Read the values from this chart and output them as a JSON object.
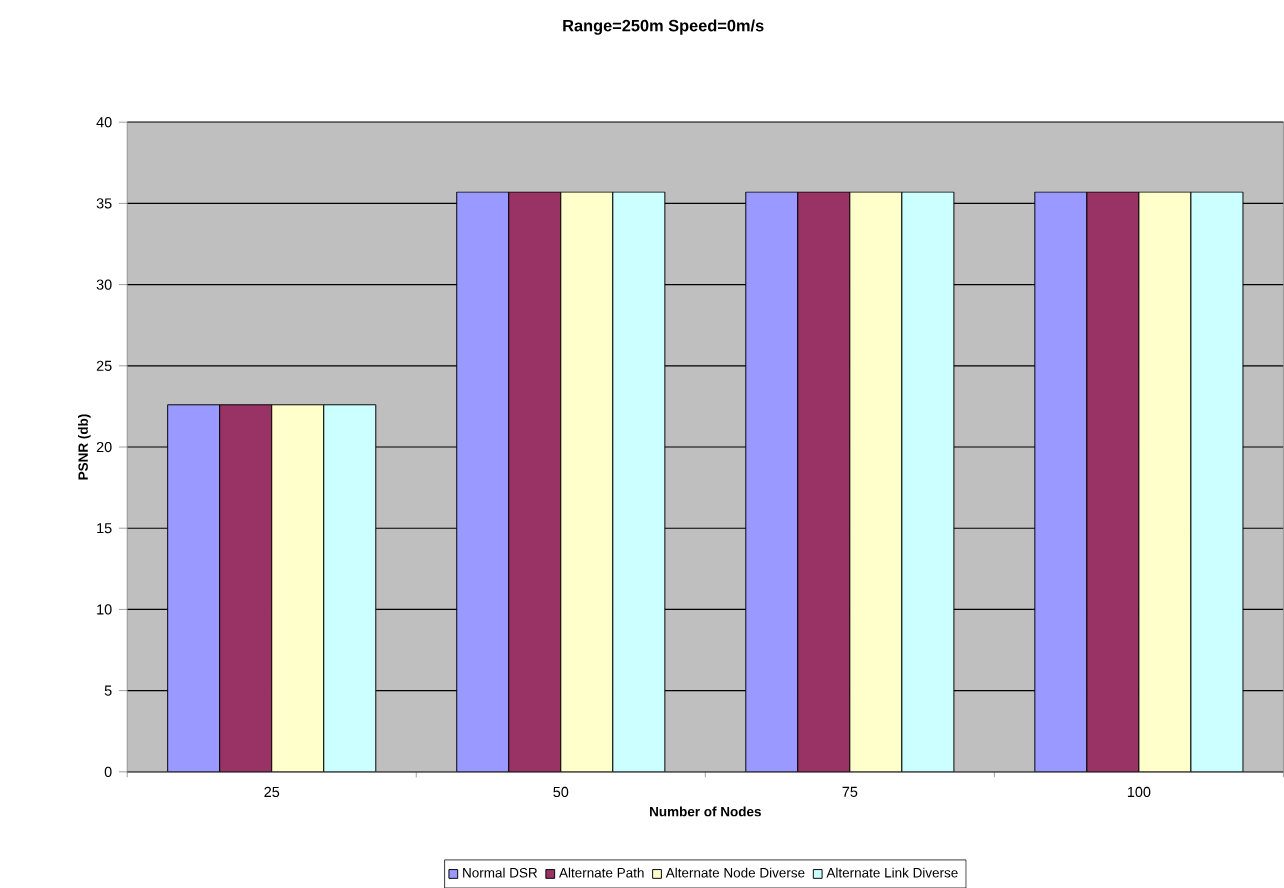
{
  "chart_data": {
    "type": "bar",
    "title": "Range=250m Speed=0m/s",
    "xlabel": "Number of Nodes",
    "ylabel": "PSNR (db)",
    "categories": [
      "25",
      "50",
      "75",
      "100"
    ],
    "series": [
      {
        "name": "Normal DSR",
        "color": "#9999ff",
        "values": [
          22.6,
          35.7,
          35.7,
          35.7
        ]
      },
      {
        "name": "Alternate Path",
        "color": "#993366",
        "values": [
          22.6,
          35.7,
          35.7,
          35.7
        ]
      },
      {
        "name": "Alternate Node Diverse",
        "color": "#ffffcc",
        "values": [
          22.6,
          35.7,
          35.7,
          35.7
        ]
      },
      {
        "name": "Alternate Link Diverse",
        "color": "#ccffff",
        "values": [
          22.6,
          35.7,
          35.7,
          35.7
        ]
      }
    ],
    "ylim": [
      0,
      40
    ],
    "yticks": [
      0,
      5,
      10,
      15,
      20,
      25,
      30,
      35,
      40
    ],
    "grid": "y",
    "legend": "bottom"
  }
}
